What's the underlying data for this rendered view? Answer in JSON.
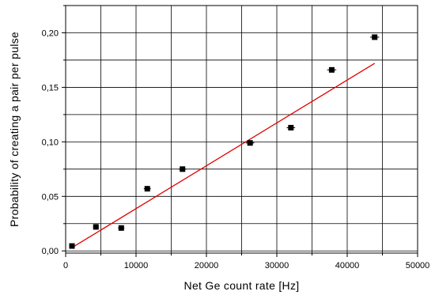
{
  "chart_data": {
    "type": "scatter",
    "title": "",
    "xlabel": "Net Ge count rate [Hz]",
    "ylabel": "Probability of creating a pair per pulse",
    "xlim": [
      0,
      50000
    ],
    "ylim": [
      -0.002,
      0.225
    ],
    "x_ticks": [
      0,
      10000,
      20000,
      30000,
      40000,
      50000
    ],
    "x_tick_labels": [
      "0",
      "10000",
      "20000",
      "30000",
      "40000",
      "50000"
    ],
    "y_ticks": [
      0.0,
      0.05,
      0.1,
      0.15,
      0.2
    ],
    "y_tick_labels": [
      "0,00",
      "0,05",
      "0,10",
      "0,15",
      "0,20"
    ],
    "grid": true,
    "series": [
      {
        "type": "scatter",
        "marker": "square",
        "color": "#000000",
        "x": [
          900,
          4300,
          7900,
          11600,
          16600,
          26200,
          32000,
          37800,
          43900
        ],
        "y": [
          0.0045,
          0.022,
          0.021,
          0.057,
          0.075,
          0.099,
          0.113,
          0.166,
          0.196
        ],
        "x_err": [
          400,
          400,
          450,
          500,
          550,
          600,
          600,
          650,
          650
        ]
      },
      {
        "type": "line",
        "color": "#e00000",
        "x": [
          900,
          43900
        ],
        "y": [
          0.003,
          0.172
        ]
      }
    ]
  }
}
